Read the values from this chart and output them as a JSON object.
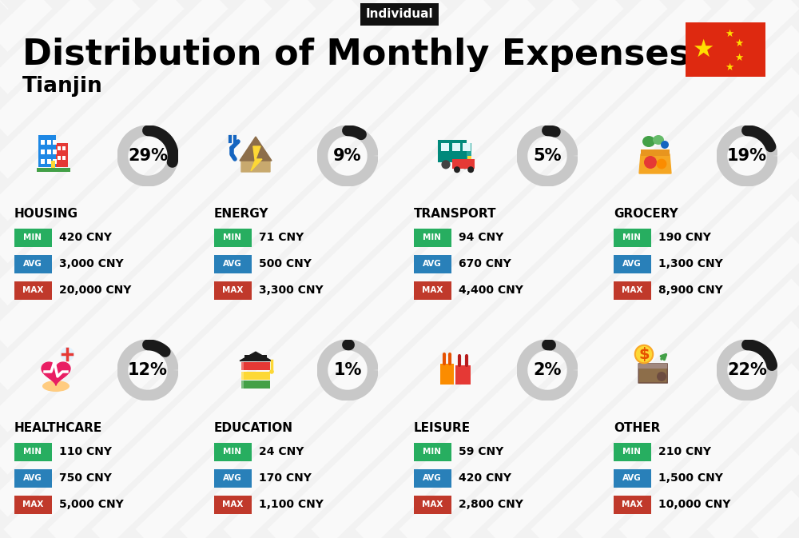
{
  "title": "Distribution of Monthly Expenses",
  "subtitle": "Tianjin",
  "tag": "Individual",
  "bg_color": "#f2f2f2",
  "categories": [
    {
      "name": "HOUSING",
      "pct": 29,
      "min": "420 CNY",
      "avg": "3,000 CNY",
      "max": "20,000 CNY",
      "row": 0,
      "col": 0,
      "icon_type": "housing"
    },
    {
      "name": "ENERGY",
      "pct": 9,
      "min": "71 CNY",
      "avg": "500 CNY",
      "max": "3,300 CNY",
      "row": 0,
      "col": 1,
      "icon_type": "energy"
    },
    {
      "name": "TRANSPORT",
      "pct": 5,
      "min": "94 CNY",
      "avg": "670 CNY",
      "max": "4,400 CNY",
      "row": 0,
      "col": 2,
      "icon_type": "transport"
    },
    {
      "name": "GROCERY",
      "pct": 19,
      "min": "190 CNY",
      "avg": "1,300 CNY",
      "max": "8,900 CNY",
      "row": 0,
      "col": 3,
      "icon_type": "grocery"
    },
    {
      "name": "HEALTHCARE",
      "pct": 12,
      "min": "110 CNY",
      "avg": "750 CNY",
      "max": "5,000 CNY",
      "row": 1,
      "col": 0,
      "icon_type": "healthcare"
    },
    {
      "name": "EDUCATION",
      "pct": 1,
      "min": "24 CNY",
      "avg": "170 CNY",
      "max": "1,100 CNY",
      "row": 1,
      "col": 1,
      "icon_type": "education"
    },
    {
      "name": "LEISURE",
      "pct": 2,
      "min": "59 CNY",
      "avg": "420 CNY",
      "max": "2,800 CNY",
      "row": 1,
      "col": 2,
      "icon_type": "leisure"
    },
    {
      "name": "OTHER",
      "pct": 22,
      "min": "210 CNY",
      "avg": "1,500 CNY",
      "max": "10,000 CNY",
      "row": 1,
      "col": 3,
      "icon_type": "other"
    }
  ],
  "min_color": "#27ae60",
  "avg_color": "#2980b9",
  "max_color": "#c0392b",
  "ring_filled_color": "#1a1a1a",
  "ring_empty_color": "#c8c8c8",
  "ring_linewidth": 10,
  "stripe_color": "#e8e8e8",
  "flag_color": "#DE2910",
  "star_color": "#FFDE00"
}
